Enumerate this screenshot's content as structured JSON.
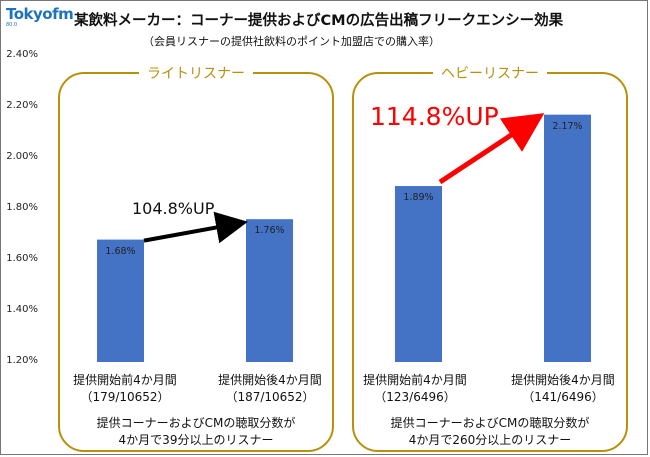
{
  "logo": {
    "brand": "Tokyofm",
    "sub": "80.0"
  },
  "title": "某飲料メーカー：コーナー提供およびCMの広告出稿フリークエンシー効果",
  "subtitle": "（会員リスナーの提供社飲料のポイント加盟店での購入率）",
  "colors": {
    "bar": "#4472c4",
    "accent": "#b8900c",
    "up_light": "#000000",
    "up_heavy": "#ff0000"
  },
  "chart_data": {
    "type": "bar",
    "ylim": [
      1.2,
      2.4
    ],
    "yticks": [
      "1.20%",
      "1.40%",
      "1.60%",
      "1.80%",
      "2.00%",
      "2.20%",
      "2.40%"
    ],
    "ytick_values": [
      1.2,
      1.4,
      1.6,
      1.8,
      2.0,
      2.2,
      2.4
    ],
    "grid": false,
    "groups": [
      {
        "label": "ライトリスナー",
        "categories": [
          {
            "line1": "提供開始前4か月間",
            "line2": "（179/10652）"
          },
          {
            "line1": "提供開始後4か月間",
            "line2": "（187/10652）"
          }
        ],
        "values": [
          1.68,
          1.76
        ],
        "data_labels": [
          "1.68%",
          "1.76%"
        ],
        "uplift": "104.8%UP",
        "note_line1": "提供コーナーおよびCMの聴取分数が",
        "note_line2": "4か月で39分以上のリスナー"
      },
      {
        "label": "ヘビーリスナー",
        "categories": [
          {
            "line1": "提供開始前4か月間",
            "line2": "（123/6496）"
          },
          {
            "line1": "提供開始後4か月間",
            "line2": "（141/6496）"
          }
        ],
        "values": [
          1.89,
          2.17
        ],
        "data_labels": [
          "1.89%",
          "2.17%"
        ],
        "uplift": "114.8%UP",
        "note_line1": "提供コーナーおよびCMの聴取分数が",
        "note_line2": "4か月で260分以上のリスナー"
      }
    ]
  }
}
